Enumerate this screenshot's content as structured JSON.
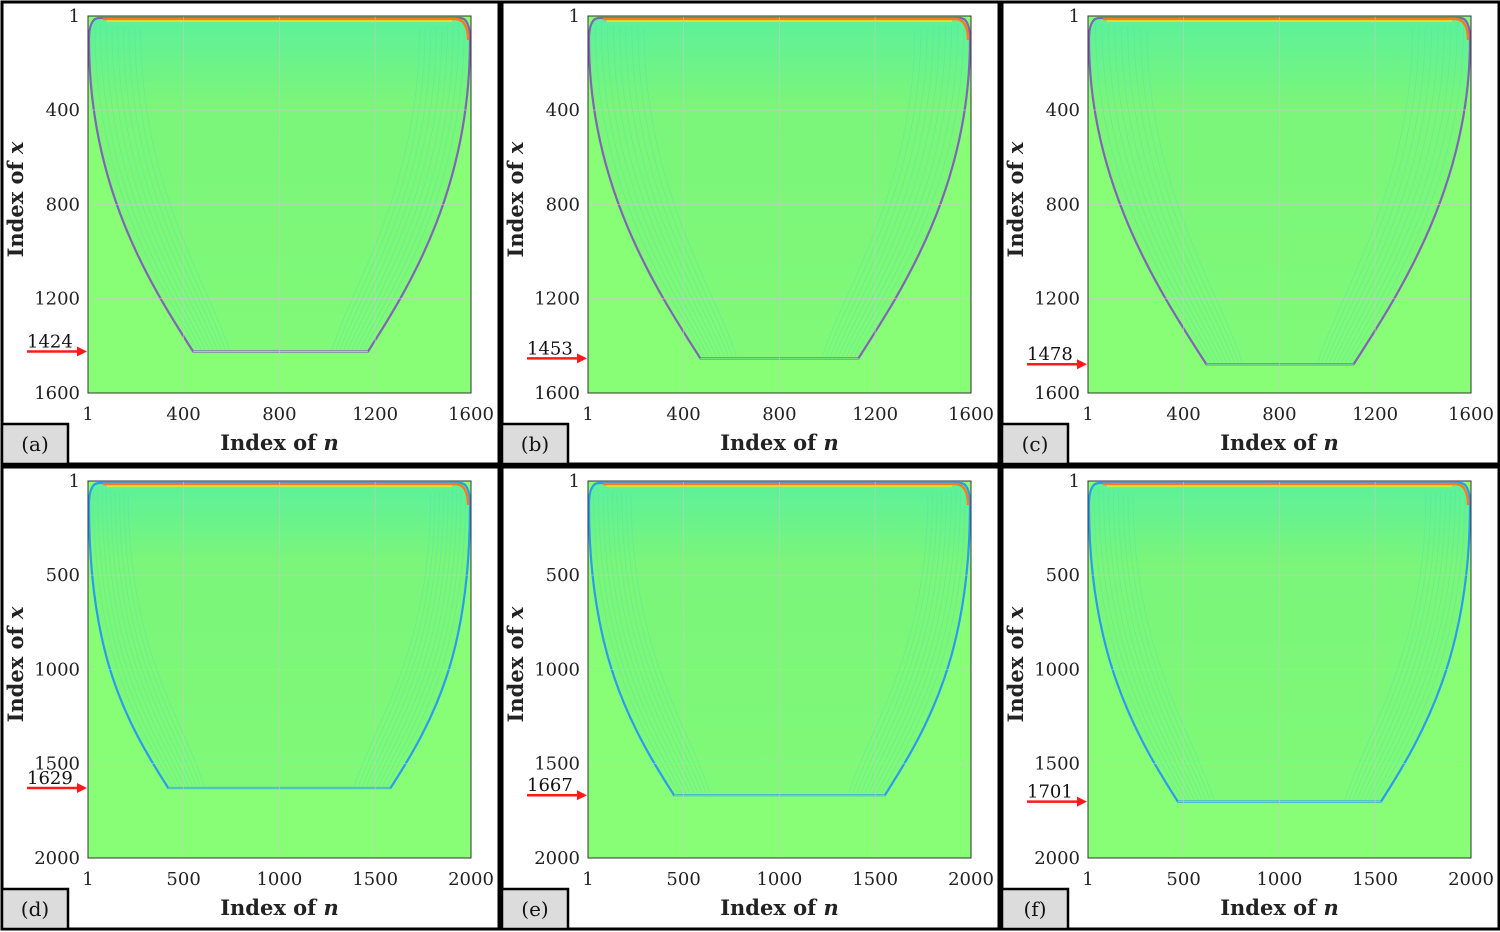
{
  "colors": {
    "background": "#88fe76",
    "fringe_green": "#72ef7c",
    "fringe_cyan": "#39e6b8",
    "edge_purple": "#8064b8",
    "edge_blue": "#2b9bf2",
    "edge_orange": "#ff7a1e",
    "edge_yellow": "#f4e21a",
    "arrow": "#ff1a1a",
    "grid": "#c9c9c9"
  },
  "chart_data": [
    {
      "type": "heatmap",
      "panel": "(a)",
      "xlabel": "Index of",
      "xlabel_var": "n",
      "ylabel": "Index of",
      "ylabel_var": "x",
      "xlim": [
        1,
        1600
      ],
      "ylim": [
        1,
        1600
      ],
      "xticks": [
        1,
        400,
        800,
        1200,
        1600
      ],
      "xtick_labels": [
        "1",
        "400",
        "800",
        "1200",
        "1600"
      ],
      "yticks": [
        1,
        400,
        800,
        1200,
        1600
      ],
      "ytick_labels": [
        "1",
        "400",
        "800",
        "1200",
        "1600"
      ],
      "grid": true,
      "marker": {
        "value": 1424,
        "label": "1424"
      },
      "region": {
        "bottom_x_start": 440,
        "bottom_x_end": 1170,
        "edge_color": "edge_purple"
      }
    },
    {
      "type": "heatmap",
      "panel": "(b)",
      "xlabel": "Index of",
      "xlabel_var": "n",
      "ylabel": "Index of",
      "ylabel_var": "x",
      "xlim": [
        1,
        1600
      ],
      "ylim": [
        1,
        1600
      ],
      "xticks": [
        1,
        400,
        800,
        1200,
        1600
      ],
      "xtick_labels": [
        "1",
        "400",
        "800",
        "1200",
        "1600"
      ],
      "yticks": [
        1,
        400,
        800,
        1200,
        1600
      ],
      "ytick_labels": [
        "1",
        "400",
        "800",
        "1200",
        "1600"
      ],
      "grid": true,
      "marker": {
        "value": 1453,
        "label": "1453"
      },
      "region": {
        "bottom_x_start": 470,
        "bottom_x_end": 1130,
        "edge_color": "edge_purple"
      }
    },
    {
      "type": "heatmap",
      "panel": "(c)",
      "xlabel": "Index of",
      "xlabel_var": "n",
      "ylabel": "Index of",
      "ylabel_var": "x",
      "xlim": [
        1,
        1600
      ],
      "ylim": [
        1,
        1600
      ],
      "xticks": [
        1,
        400,
        800,
        1200,
        1600
      ],
      "xtick_labels": [
        "1",
        "400",
        "800",
        "1200",
        "1600"
      ],
      "yticks": [
        1,
        400,
        800,
        1200,
        1600
      ],
      "ytick_labels": [
        "1",
        "400",
        "800",
        "1200",
        "1600"
      ],
      "grid": true,
      "marker": {
        "value": 1478,
        "label": "1478"
      },
      "region": {
        "bottom_x_start": 495,
        "bottom_x_end": 1110,
        "edge_color": "edge_purple"
      }
    },
    {
      "type": "heatmap",
      "panel": "(d)",
      "xlabel": "Index of",
      "xlabel_var": "n",
      "ylabel": "Index of",
      "ylabel_var": "x",
      "xlim": [
        1,
        2000
      ],
      "ylim": [
        1,
        2000
      ],
      "xticks": [
        1,
        500,
        1000,
        1500,
        2000
      ],
      "xtick_labels": [
        "1",
        "500",
        "1000",
        "1500",
        "2000"
      ],
      "yticks": [
        1,
        500,
        1000,
        1500,
        2000
      ],
      "ytick_labels": [
        "1",
        "500",
        "1000",
        "1500",
        "2000"
      ],
      "grid": true,
      "marker": {
        "value": 1629,
        "label": "1629"
      },
      "region": {
        "bottom_x_start": 420,
        "bottom_x_end": 1580,
        "edge_color": "edge_blue"
      }
    },
    {
      "type": "heatmap",
      "panel": "(e)",
      "xlabel": "Index of",
      "xlabel_var": "n",
      "ylabel": "Index of",
      "ylabel_var": "x",
      "xlim": [
        1,
        2000
      ],
      "ylim": [
        1,
        2000
      ],
      "xticks": [
        1,
        500,
        1000,
        1500,
        2000
      ],
      "xtick_labels": [
        "1",
        "500",
        "1000",
        "1500",
        "2000"
      ],
      "yticks": [
        1,
        500,
        1000,
        1500,
        2000
      ],
      "ytick_labels": [
        "1",
        "500",
        "1000",
        "1500",
        "2000"
      ],
      "grid": true,
      "marker": {
        "value": 1667,
        "label": "1667"
      },
      "region": {
        "bottom_x_start": 450,
        "bottom_x_end": 1550,
        "edge_color": "edge_blue"
      }
    },
    {
      "type": "heatmap",
      "panel": "(f)",
      "xlabel": "Index of",
      "xlabel_var": "n",
      "ylabel": "Index of",
      "ylabel_var": "x",
      "xlim": [
        1,
        2000
      ],
      "ylim": [
        1,
        2000
      ],
      "xticks": [
        1,
        500,
        1000,
        1500,
        2000
      ],
      "xtick_labels": [
        "1",
        "500",
        "1000",
        "1500",
        "2000"
      ],
      "yticks": [
        1,
        500,
        1000,
        1500,
        2000
      ],
      "ytick_labels": [
        "1",
        "500",
        "1000",
        "1500",
        "2000"
      ],
      "grid": true,
      "marker": {
        "value": 1701,
        "label": "1701"
      },
      "region": {
        "bottom_x_start": 470,
        "bottom_x_end": 1530,
        "edge_color": "edge_blue"
      }
    }
  ]
}
